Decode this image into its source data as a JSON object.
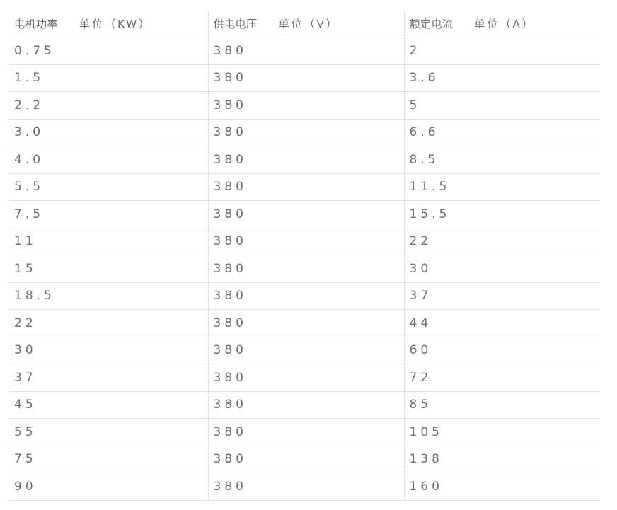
{
  "headers": [
    {
      "name": "电机功率",
      "unit": "单位（KW）"
    },
    {
      "name": "供电电压",
      "unit": "单位（V）"
    },
    {
      "name": "额定电流",
      "unit": "单位（A）"
    }
  ],
  "rows": [
    [
      "0.75",
      "380",
      "2"
    ],
    [
      "1.5",
      "380",
      "3.6"
    ],
    [
      "2.2",
      "380",
      "5"
    ],
    [
      "3.0",
      "380",
      "6.6"
    ],
    [
      "4.0",
      "380",
      "8.5"
    ],
    [
      "5.5",
      "380",
      "11.5"
    ],
    [
      "7.5",
      "380",
      "15.5"
    ],
    [
      "11",
      "380",
      "22"
    ],
    [
      "15",
      "380",
      "30"
    ],
    [
      "18.5",
      "380",
      "37"
    ],
    [
      "22",
      "380",
      "44"
    ],
    [
      "30",
      "380",
      "60"
    ],
    [
      "37",
      "380",
      "72"
    ],
    [
      "45",
      "380",
      "85"
    ],
    [
      "55",
      "380",
      "105"
    ],
    [
      "75",
      "380",
      "138"
    ],
    [
      "90",
      "380",
      "160"
    ]
  ]
}
